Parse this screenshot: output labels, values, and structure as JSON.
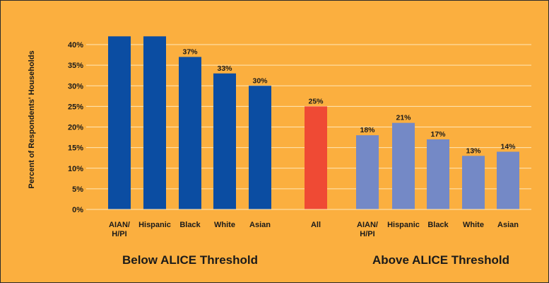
{
  "chart_data": {
    "type": "bar",
    "ylabel": "Percent of Respondents' Households",
    "ylim": [
      0,
      45
    ],
    "yticks": [
      "0%",
      "5%",
      "10%",
      "15%",
      "20%",
      "25%",
      "30%",
      "35%",
      "40%"
    ],
    "grid": true,
    "bars": [
      {
        "category": "AIAN/\nH/PI",
        "group": "Below ALICE Threshold",
        "value": 42,
        "label": "",
        "color": "#0B4DA2"
      },
      {
        "category": "Hispanic",
        "group": "Below ALICE Threshold",
        "value": 42,
        "label": "",
        "color": "#0B4DA2"
      },
      {
        "category": "Black",
        "group": "Below ALICE Threshold",
        "value": 37,
        "label": "37%",
        "color": "#0B4DA2"
      },
      {
        "category": "White",
        "group": "Below ALICE Threshold",
        "value": 33,
        "label": "33%",
        "color": "#0B4DA2"
      },
      {
        "category": "Asian",
        "group": "Below ALICE Threshold",
        "value": 30,
        "label": "30%",
        "color": "#0B4DA2"
      },
      {
        "category": "All",
        "group": "",
        "value": 25,
        "label": "25%",
        "color": "#EF4A34"
      },
      {
        "category": "AIAN/\nH/PI",
        "group": "Above ALICE Threshold",
        "value": 18,
        "label": "18%",
        "color": "#7489C6"
      },
      {
        "category": "Hispanic",
        "group": "Above ALICE Threshold",
        "value": 21,
        "label": "21%",
        "color": "#7489C6"
      },
      {
        "category": "Black",
        "group": "Above ALICE Threshold",
        "value": 17,
        "label": "17%",
        "color": "#7489C6"
      },
      {
        "category": "White",
        "group": "Above ALICE Threshold",
        "value": 13,
        "label": "13%",
        "color": "#7489C6"
      },
      {
        "category": "Asian",
        "group": "Above ALICE Threshold",
        "value": 14,
        "label": "14%",
        "color": "#7489C6"
      }
    ],
    "groups": [
      "Below ALICE Threshold",
      "Above ALICE Threshold"
    ],
    "colors": {
      "below": "#0B4DA2",
      "all": "#EF4A34",
      "above": "#7489C6",
      "background": "#FBAF3F",
      "grid": "#FFE7B8"
    }
  }
}
